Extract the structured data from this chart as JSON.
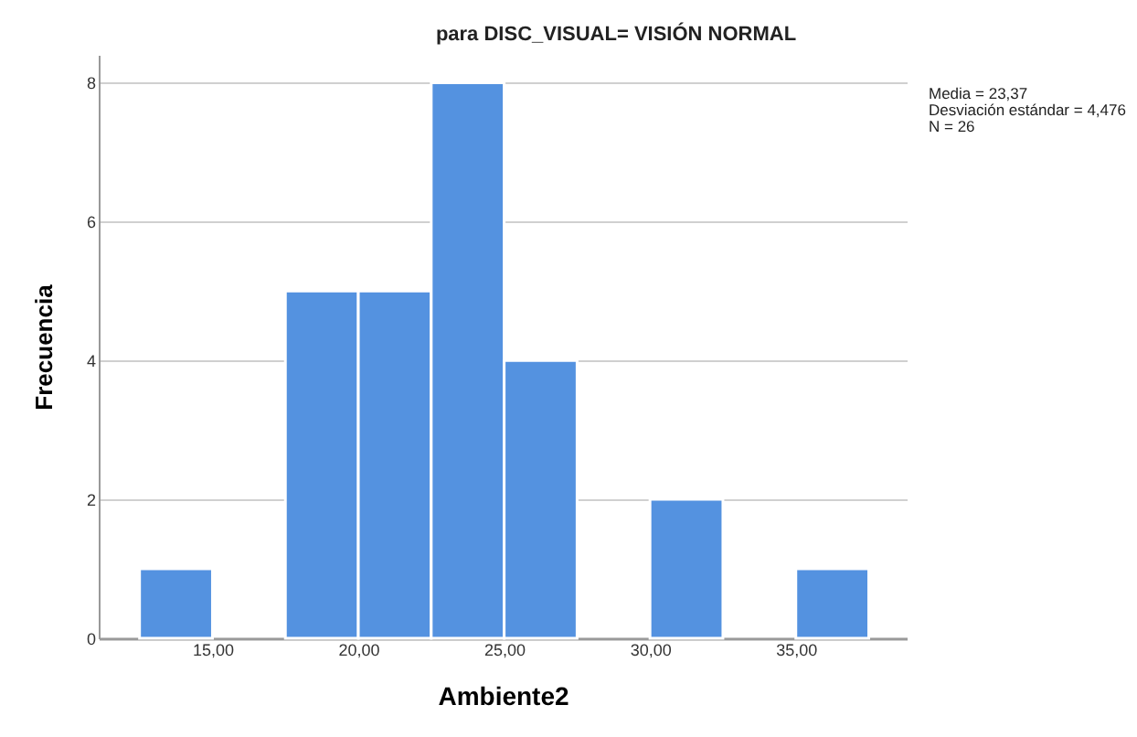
{
  "chart_data": {
    "type": "histogram",
    "title": "para DISC_VISUAL= VISIÓN NORMAL",
    "xlabel": "Ambiente2",
    "ylabel": "Frecuencia",
    "annotations": [
      "Media = 23,37",
      "Desviación estándar = 4,476",
      "N = 26"
    ],
    "bins": [
      12.5,
      15,
      17.5,
      20,
      22.5,
      25,
      27.5,
      30,
      32.5,
      35,
      37.5
    ],
    "values": [
      1,
      0,
      5,
      5,
      8,
      4,
      0,
      2,
      0,
      1
    ],
    "color": "#5492e0",
    "xlim": [
      11.1,
      38.8
    ],
    "ylim": [
      0,
      8.4
    ],
    "xticks": [
      {
        "value": 15,
        "label": "15,00"
      },
      {
        "value": 20,
        "label": "20,00"
      },
      {
        "value": 25,
        "label": "25,00"
      },
      {
        "value": 30,
        "label": "30,00"
      },
      {
        "value": 35,
        "label": "35,00"
      }
    ],
    "yticks": [
      0,
      2,
      4,
      6,
      8
    ],
    "grid": "y"
  }
}
